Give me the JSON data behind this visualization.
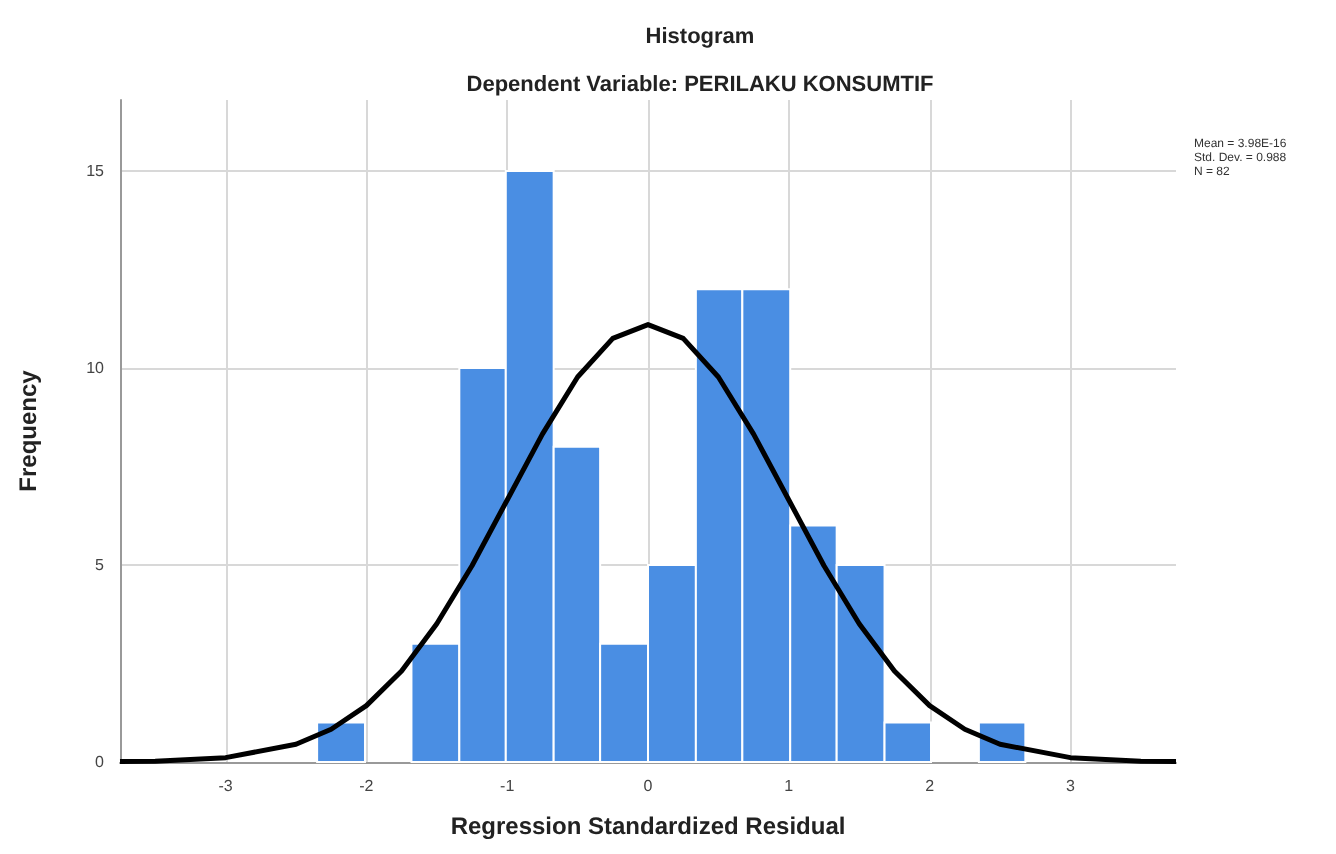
{
  "chart_data": {
    "type": "histogram",
    "title": "Histogram",
    "subtitle": "Dependent Variable: PERILAKU KONSUMTIF",
    "xlabel": "Regression Standardized Residual",
    "ylabel": "Frequency",
    "annotations": [
      "Mean = 3.98E-16",
      "Std. Dev. = 0.988",
      "N = 82"
    ],
    "bins": [
      -2.35,
      -2.01,
      -1.68,
      -1.34,
      -1.01,
      -0.67,
      -0.34,
      0,
      0.34,
      0.67,
      1.01,
      1.34,
      1.68,
      2.01,
      2.35,
      2.68
    ],
    "series": [
      {
        "color": "#4a8ee3",
        "values": [
          1,
          0,
          3,
          10,
          15,
          8,
          3,
          5,
          12,
          12,
          6,
          5,
          1,
          0,
          1
        ]
      },
      {
        "type": "line",
        "color": "#000000",
        "x": [
          -3.75,
          -3.5,
          -3,
          -2.5,
          -2.25,
          -2,
          -1.75,
          -1.5,
          -1.25,
          -1,
          -0.75,
          -0.5,
          -0.25,
          0,
          0.25,
          0.5,
          0.75,
          1,
          1.25,
          1.5,
          1.75,
          2,
          2.25,
          2.5,
          3,
          3.5,
          3.75
        ],
        "values": [
          0.01,
          0.02,
          0.11,
          0.45,
          0.83,
          1.43,
          2.31,
          3.51,
          4.98,
          6.65,
          8.32,
          9.77,
          10.75,
          11.1,
          10.75,
          9.77,
          8.32,
          6.65,
          4.98,
          3.51,
          2.31,
          1.43,
          0.83,
          0.45,
          0.11,
          0.02,
          0.01
        ]
      }
    ],
    "xlim": [
      -3.75,
      3.75
    ],
    "xticks": [
      -3,
      -2,
      -1,
      0,
      1,
      2,
      3
    ],
    "ylim": [
      0,
      16.8
    ],
    "yticks": [
      0,
      5,
      10,
      15
    ],
    "grid": true,
    "marker": "none"
  }
}
